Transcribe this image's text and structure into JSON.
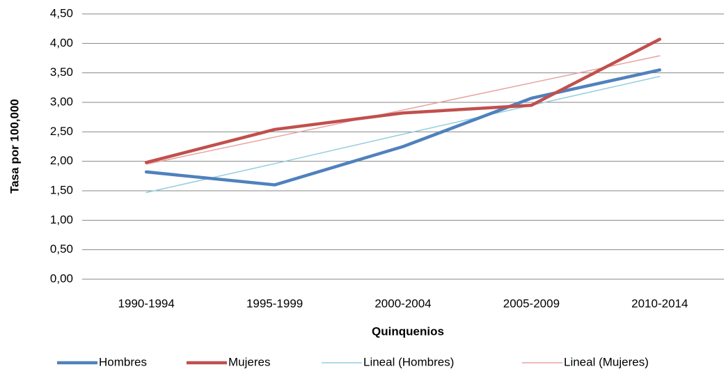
{
  "chart_data": {
    "type": "line",
    "x_label": "Quinquenios",
    "y_label": "Tasa por 100,000",
    "categories": [
      "1990-1994",
      "1995-1999",
      "2000-2004",
      "2005-2009",
      "2010-2014"
    ],
    "series": [
      {
        "name": "Hombres",
        "color": "#4f81bd",
        "values": [
          1.82,
          1.6,
          2.25,
          3.07,
          3.55
        ]
      },
      {
        "name": "Mujeres",
        "color": "#c0504d",
        "values": [
          1.98,
          2.54,
          2.82,
          2.95,
          4.07
        ]
      },
      {
        "name": "Lineal (Hombres)",
        "color": "#93cddd",
        "values": [
          1.47,
          1.96,
          2.46,
          2.95,
          3.44
        ]
      },
      {
        "name": "Lineal (Mujeres)",
        "color": "#e6a3a1",
        "values": [
          1.95,
          2.41,
          2.87,
          3.33,
          3.79
        ]
      }
    ],
    "ylim": [
      0,
      4.5
    ],
    "yticks": [
      {
        "value": 0,
        "label": "0,00"
      },
      {
        "value": 0.5,
        "label": "0,50"
      },
      {
        "value": 1,
        "label": "1,00"
      },
      {
        "value": 1.5,
        "label": "1,50"
      },
      {
        "value": 2,
        "label": "2,00"
      },
      {
        "value": 2.5,
        "label": "2,50"
      },
      {
        "value": 3,
        "label": "3,00"
      },
      {
        "value": 3.5,
        "label": "3,50"
      },
      {
        "value": 4,
        "label": "4,00"
      },
      {
        "value": 4.5,
        "label": "4,50"
      }
    ],
    "grid": true,
    "legend": "bottom"
  }
}
